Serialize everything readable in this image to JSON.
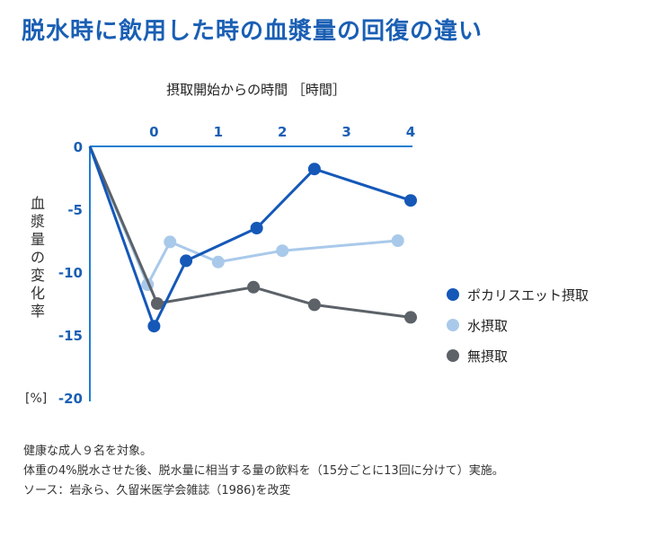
{
  "title": "脱水時に飲用した時の血漿量の回復の違い",
  "chart_data": {
    "type": "line",
    "xlabel": "摂取開始からの時間 ［時間］",
    "ylabel": "血漿量の変化率",
    "yunit": "[%]",
    "xticks": [
      "0",
      "1",
      "2",
      "3",
      "4"
    ],
    "yticks": [
      "0",
      "-5",
      "-10",
      "-15",
      "-20"
    ],
    "xlim": [
      -1,
      4
    ],
    "ylim": [
      -20,
      0
    ],
    "legend_position": "right",
    "grid": false,
    "series": [
      {
        "name": "ポカリスエット摂取",
        "color": "#1558b8",
        "x": [
          -1,
          0,
          0.5,
          1.6,
          2.5,
          4
        ],
        "y": [
          0,
          -14.3,
          -9.1,
          -6.5,
          -1.8,
          -4.3
        ]
      },
      {
        "name": "水摂取",
        "color": "#a9c9ea",
        "x": [
          -1,
          -0.1,
          0.25,
          1.0,
          2.0,
          3.8
        ],
        "y": [
          0,
          -11.0,
          -7.6,
          -9.2,
          -8.3,
          -7.5
        ]
      },
      {
        "name": "無摂取",
        "color": "#5c6268",
        "x": [
          -1,
          0.05,
          1.55,
          2.5,
          4
        ],
        "y": [
          0,
          -12.5,
          -11.2,
          -12.6,
          -13.6
        ]
      }
    ]
  },
  "notes": [
    "健康な成人９名を対象。",
    "体重の4%脱水させた後、脱水量に相当する量の飲料を（15分ごとに13回に分けて）実施。",
    "ソース：岩永ら、久留米医学会雑誌（1986)を改変"
  ]
}
